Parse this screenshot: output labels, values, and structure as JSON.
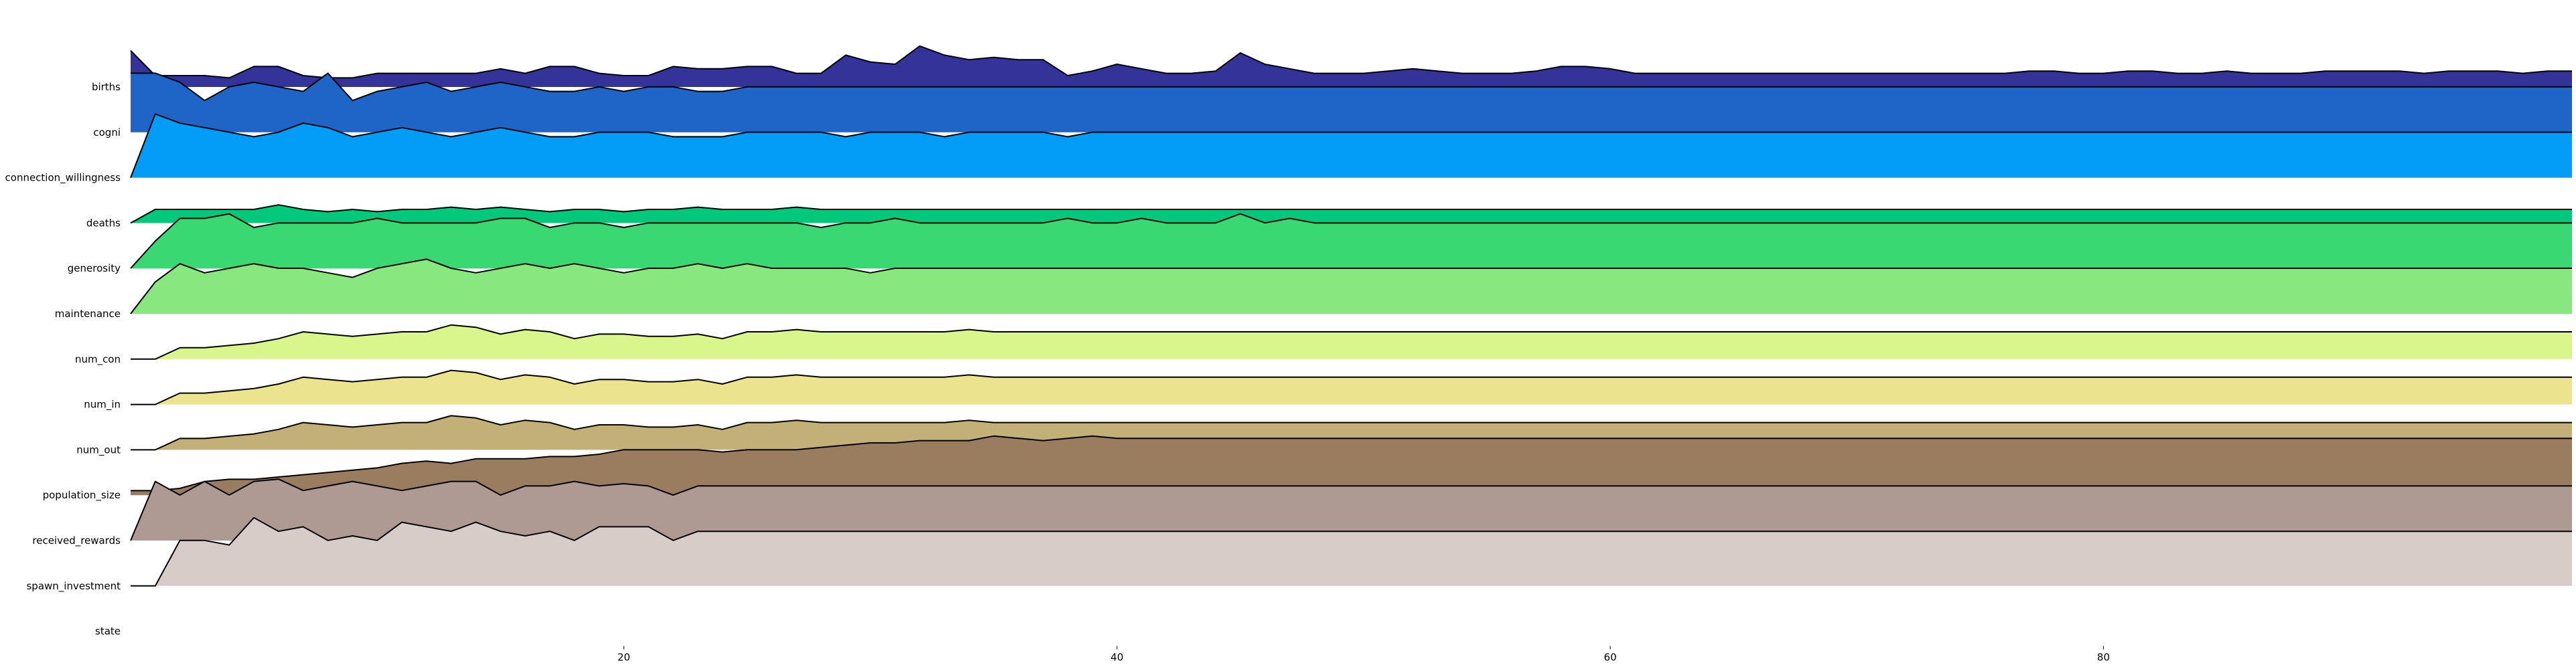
{
  "chart_data": {
    "type": "area",
    "title": "",
    "xlabel": "",
    "ylabel": "",
    "xlim": [
      0,
      99
    ],
    "x_ticks": [
      20,
      40,
      60,
      80
    ],
    "grid": false,
    "legend": "none",
    "series": [
      {
        "name": "births",
        "color": "#343399",
        "values": [
          0.8,
          0.25,
          0.25,
          0.25,
          0.2,
          0.45,
          0.45,
          0.25,
          0.2,
          0.2,
          0.3,
          0.3,
          0.3,
          0.3,
          0.3,
          0.4,
          0.3,
          0.45,
          0.45,
          0.3,
          0.25,
          0.25,
          0.45,
          0.4,
          0.4,
          0.45,
          0.45,
          0.3,
          0.3,
          0.7,
          0.55,
          0.5,
          0.9,
          0.7,
          0.6,
          0.65,
          0.6,
          0.6,
          0.25,
          0.35,
          0.5,
          0.4,
          0.3,
          0.3,
          0.35,
          0.75,
          0.5,
          0.4,
          0.3,
          0.3,
          0.3,
          0.35,
          0.4,
          0.35,
          0.3,
          0.3,
          0.3,
          0.35,
          0.45,
          0.45,
          0.4,
          0.3,
          0.3,
          0.3,
          0.3,
          0.3,
          0.3,
          0.3,
          0.3,
          0.3,
          0.3,
          0.3,
          0.3,
          0.3,
          0.3,
          0.3,
          0.3,
          0.35,
          0.35,
          0.3,
          0.3,
          0.35,
          0.35,
          0.3,
          0.3,
          0.35,
          0.3,
          0.3,
          0.3,
          0.35,
          0.35,
          0.35,
          0.35,
          0.3,
          0.35,
          0.35,
          0.35,
          0.3,
          0.35,
          0.35
        ]
      },
      {
        "name": "cogni",
        "color": "#1f65c8",
        "values": [
          1.3,
          1.3,
          1.1,
          0.7,
          1.0,
          1.1,
          1.0,
          0.9,
          1.3,
          0.7,
          0.9,
          1.0,
          1.1,
          0.9,
          1.0,
          1.1,
          1.0,
          0.9,
          0.9,
          1.0,
          0.9,
          1.0,
          1.0,
          0.9,
          0.9,
          1.0,
          1.0,
          1.0,
          1.0,
          1.0,
          1.0,
          1.0,
          1.0,
          1.0,
          1.0,
          1.0,
          1.0,
          1.0,
          1.0,
          1.0,
          1.0,
          1.0,
          1.0,
          1.0,
          1.0,
          1.0,
          1.0,
          1.0,
          1.0,
          1.0,
          1.0,
          1.0,
          1.0,
          1.0,
          1.0,
          1.0,
          1.0,
          1.0,
          1.0,
          1.0,
          1.0,
          1.0,
          1.0,
          1.0,
          1.0,
          1.0,
          1.0,
          1.0,
          1.0,
          1.0,
          1.0,
          1.0,
          1.0,
          1.0,
          1.0,
          1.0,
          1.0,
          1.0,
          1.0,
          1.0,
          1.0,
          1.0,
          1.0,
          1.0,
          1.0,
          1.0,
          1.0,
          1.0,
          1.0,
          1.0,
          1.0,
          1.0,
          1.0,
          1.0,
          1.0,
          1.0,
          1.0,
          1.0,
          1.0,
          1.0
        ]
      },
      {
        "name": "connection_willingness",
        "color": "#039df7",
        "values": [
          0.0,
          1.4,
          1.2,
          1.1,
          1.0,
          0.9,
          1.0,
          1.2,
          1.1,
          0.9,
          1.0,
          1.1,
          1.0,
          0.9,
          1.0,
          1.1,
          1.0,
          0.9,
          0.9,
          1.0,
          1.0,
          1.0,
          0.9,
          0.9,
          0.9,
          1.0,
          1.0,
          1.0,
          1.0,
          0.9,
          1.0,
          1.0,
          1.0,
          0.9,
          1.0,
          1.0,
          1.0,
          1.0,
          0.9,
          1.0,
          1.0,
          1.0,
          1.0,
          1.0,
          1.0,
          1.0,
          1.0,
          1.0,
          1.0,
          1.0,
          1.0,
          1.0,
          1.0,
          1.0,
          1.0,
          1.0,
          1.0,
          1.0,
          1.0,
          1.0,
          1.0,
          1.0,
          1.0,
          1.0,
          1.0,
          1.0,
          1.0,
          1.0,
          1.0,
          1.0,
          1.0,
          1.0,
          1.0,
          1.0,
          1.0,
          1.0,
          1.0,
          1.0,
          1.0,
          1.0,
          1.0,
          1.0,
          1.0,
          1.0,
          1.0,
          1.0,
          1.0,
          1.0,
          1.0,
          1.0,
          1.0,
          1.0,
          1.0,
          1.0,
          1.0,
          1.0,
          1.0,
          1.0,
          1.0,
          1.0
        ]
      },
      {
        "name": "deaths",
        "color": "#02c87c",
        "values": [
          0.0,
          0.3,
          0.3,
          0.3,
          0.3,
          0.3,
          0.4,
          0.3,
          0.25,
          0.3,
          0.25,
          0.3,
          0.3,
          0.35,
          0.3,
          0.35,
          0.3,
          0.25,
          0.3,
          0.3,
          0.25,
          0.3,
          0.3,
          0.35,
          0.3,
          0.3,
          0.3,
          0.35,
          0.3,
          0.3,
          0.3,
          0.3,
          0.3,
          0.3,
          0.3,
          0.3,
          0.3,
          0.3,
          0.3,
          0.3,
          0.3,
          0.3,
          0.3,
          0.3,
          0.3,
          0.3,
          0.3,
          0.3,
          0.3,
          0.3,
          0.3,
          0.3,
          0.3,
          0.3,
          0.3,
          0.3,
          0.3,
          0.3,
          0.3,
          0.3,
          0.3,
          0.3,
          0.3,
          0.3,
          0.3,
          0.3,
          0.3,
          0.3,
          0.3,
          0.3,
          0.3,
          0.3,
          0.3,
          0.3,
          0.3,
          0.3,
          0.3,
          0.3,
          0.3,
          0.3,
          0.3,
          0.3,
          0.3,
          0.3,
          0.3,
          0.3,
          0.3,
          0.3,
          0.3,
          0.3,
          0.3,
          0.3,
          0.3,
          0.3,
          0.3,
          0.3,
          0.3,
          0.3,
          0.3,
          0.3
        ]
      },
      {
        "name": "generosity",
        "color": "#3ad872",
        "values": [
          0.0,
          0.6,
          1.1,
          1.1,
          1.2,
          0.9,
          1.0,
          1.0,
          1.0,
          1.0,
          1.1,
          1.0,
          1.0,
          1.0,
          1.0,
          1.1,
          1.1,
          0.9,
          1.0,
          1.0,
          0.9,
          1.0,
          1.0,
          1.0,
          1.0,
          1.0,
          1.0,
          1.0,
          0.9,
          1.0,
          1.0,
          1.1,
          1.0,
          1.0,
          1.0,
          1.0,
          1.0,
          1.0,
          1.1,
          1.0,
          1.0,
          1.1,
          1.0,
          1.0,
          1.0,
          1.2,
          1.0,
          1.1,
          1.0,
          1.0,
          1.0,
          1.0,
          1.0,
          1.0,
          1.0,
          1.0,
          1.0,
          1.0,
          1.0,
          1.0,
          1.0,
          1.0,
          1.0,
          1.0,
          1.0,
          1.0,
          1.0,
          1.0,
          1.0,
          1.0,
          1.0,
          1.0,
          1.0,
          1.0,
          1.0,
          1.0,
          1.0,
          1.0,
          1.0,
          1.0,
          1.0,
          1.0,
          1.0,
          1.0,
          1.0,
          1.0,
          1.0,
          1.0,
          1.0,
          1.0,
          1.0,
          1.0,
          1.0,
          1.0,
          1.0,
          1.0,
          1.0,
          1.0,
          1.0,
          1.0
        ]
      },
      {
        "name": "maintenance",
        "color": "#88e77f",
        "values": [
          0.0,
          0.7,
          1.1,
          0.9,
          1.0,
          1.1,
          1.0,
          1.0,
          0.9,
          0.8,
          1.0,
          1.1,
          1.2,
          1.0,
          0.9,
          1.0,
          1.1,
          1.0,
          1.1,
          1.0,
          0.9,
          1.0,
          1.0,
          1.1,
          1.0,
          1.1,
          1.0,
          1.0,
          1.0,
          1.0,
          0.9,
          1.0,
          1.0,
          1.0,
          1.0,
          1.0,
          1.0,
          1.0,
          1.0,
          1.0,
          1.0,
          1.0,
          1.0,
          1.0,
          1.0,
          1.0,
          1.0,
          1.0,
          1.0,
          1.0,
          1.0,
          1.0,
          1.0,
          1.0,
          1.0,
          1.0,
          1.0,
          1.0,
          1.0,
          1.0,
          1.0,
          1.0,
          1.0,
          1.0,
          1.0,
          1.0,
          1.0,
          1.0,
          1.0,
          1.0,
          1.0,
          1.0,
          1.0,
          1.0,
          1.0,
          1.0,
          1.0,
          1.0,
          1.0,
          1.0,
          1.0,
          1.0,
          1.0,
          1.0,
          1.0,
          1.0,
          1.0,
          1.0,
          1.0,
          1.0,
          1.0,
          1.0,
          1.0,
          1.0,
          1.0,
          1.0,
          1.0,
          1.0,
          1.0,
          1.0
        ]
      },
      {
        "name": "num_con",
        "color": "#d8f68b",
        "values": [
          0.0,
          0.0,
          0.25,
          0.25,
          0.3,
          0.35,
          0.45,
          0.6,
          0.55,
          0.5,
          0.55,
          0.6,
          0.6,
          0.75,
          0.7,
          0.55,
          0.65,
          0.6,
          0.45,
          0.55,
          0.55,
          0.5,
          0.5,
          0.55,
          0.45,
          0.6,
          0.6,
          0.65,
          0.6,
          0.6,
          0.6,
          0.6,
          0.6,
          0.6,
          0.65,
          0.6,
          0.6,
          0.6,
          0.6,
          0.6,
          0.6,
          0.6,
          0.6,
          0.6,
          0.6,
          0.6,
          0.6,
          0.6,
          0.6,
          0.6,
          0.6,
          0.6,
          0.6,
          0.6,
          0.6,
          0.6,
          0.6,
          0.6,
          0.6,
          0.6,
          0.6,
          0.6,
          0.6,
          0.6,
          0.6,
          0.6,
          0.6,
          0.6,
          0.6,
          0.6,
          0.6,
          0.6,
          0.6,
          0.6,
          0.6,
          0.6,
          0.6,
          0.6,
          0.6,
          0.6,
          0.6,
          0.6,
          0.6,
          0.6,
          0.6,
          0.6,
          0.6,
          0.6,
          0.6,
          0.6,
          0.6,
          0.6,
          0.6,
          0.6,
          0.6,
          0.6,
          0.6,
          0.6,
          0.6,
          0.6
        ]
      },
      {
        "name": "num_in",
        "color": "#ebe38d",
        "values": [
          0.0,
          0.0,
          0.25,
          0.25,
          0.3,
          0.35,
          0.45,
          0.6,
          0.55,
          0.5,
          0.55,
          0.6,
          0.6,
          0.75,
          0.7,
          0.55,
          0.65,
          0.6,
          0.45,
          0.55,
          0.55,
          0.5,
          0.5,
          0.55,
          0.45,
          0.6,
          0.6,
          0.65,
          0.6,
          0.6,
          0.6,
          0.6,
          0.6,
          0.6,
          0.65,
          0.6,
          0.6,
          0.6,
          0.6,
          0.6,
          0.6,
          0.6,
          0.6,
          0.6,
          0.6,
          0.6,
          0.6,
          0.6,
          0.6,
          0.6,
          0.6,
          0.6,
          0.6,
          0.6,
          0.6,
          0.6,
          0.6,
          0.6,
          0.6,
          0.6,
          0.6,
          0.6,
          0.6,
          0.6,
          0.6,
          0.6,
          0.6,
          0.6,
          0.6,
          0.6,
          0.6,
          0.6,
          0.6,
          0.6,
          0.6,
          0.6,
          0.6,
          0.6,
          0.6,
          0.6,
          0.6,
          0.6,
          0.6,
          0.6,
          0.6,
          0.6,
          0.6,
          0.6,
          0.6,
          0.6,
          0.6,
          0.6,
          0.6,
          0.6,
          0.6,
          0.6,
          0.6,
          0.6,
          0.6,
          0.6
        ]
      },
      {
        "name": "num_out",
        "color": "#c3b077",
        "values": [
          0.0,
          0.0,
          0.25,
          0.25,
          0.3,
          0.35,
          0.45,
          0.6,
          0.55,
          0.5,
          0.55,
          0.6,
          0.6,
          0.75,
          0.7,
          0.55,
          0.65,
          0.6,
          0.45,
          0.55,
          0.55,
          0.5,
          0.5,
          0.55,
          0.45,
          0.6,
          0.6,
          0.65,
          0.6,
          0.6,
          0.6,
          0.6,
          0.6,
          0.6,
          0.65,
          0.6,
          0.6,
          0.6,
          0.6,
          0.6,
          0.6,
          0.6,
          0.6,
          0.6,
          0.6,
          0.6,
          0.6,
          0.6,
          0.6,
          0.6,
          0.6,
          0.6,
          0.6,
          0.6,
          0.6,
          0.6,
          0.6,
          0.6,
          0.6,
          0.6,
          0.6,
          0.6,
          0.6,
          0.6,
          0.6,
          0.6,
          0.6,
          0.6,
          0.6,
          0.6,
          0.6,
          0.6,
          0.6,
          0.6,
          0.6,
          0.6,
          0.6,
          0.6,
          0.6,
          0.6,
          0.6,
          0.6,
          0.6,
          0.6,
          0.6,
          0.6,
          0.6,
          0.6,
          0.6,
          0.6,
          0.6,
          0.6,
          0.6,
          0.6,
          0.6,
          0.6,
          0.6,
          0.6,
          0.6,
          0.6
        ]
      },
      {
        "name": "population_size",
        "color": "#9a7c5f",
        "values": [
          0.1,
          0.1,
          0.15,
          0.3,
          0.35,
          0.35,
          0.4,
          0.45,
          0.5,
          0.55,
          0.6,
          0.7,
          0.75,
          0.7,
          0.8,
          0.8,
          0.8,
          0.85,
          0.85,
          0.9,
          1.0,
          1.0,
          1.0,
          1.0,
          0.95,
          1.0,
          1.0,
          1.0,
          1.05,
          1.1,
          1.15,
          1.15,
          1.2,
          1.2,
          1.2,
          1.3,
          1.25,
          1.2,
          1.25,
          1.3,
          1.25,
          1.25,
          1.25,
          1.25,
          1.25,
          1.25,
          1.25,
          1.25,
          1.25,
          1.25,
          1.25,
          1.25,
          1.25,
          1.25,
          1.25,
          1.25,
          1.25,
          1.25,
          1.25,
          1.25,
          1.25,
          1.25,
          1.25,
          1.25,
          1.25,
          1.25,
          1.25,
          1.25,
          1.25,
          1.25,
          1.25,
          1.25,
          1.25,
          1.25,
          1.25,
          1.25,
          1.25,
          1.25,
          1.25,
          1.25,
          1.25,
          1.25,
          1.25,
          1.25,
          1.25,
          1.25,
          1.25,
          1.25,
          1.25,
          1.25,
          1.25,
          1.25,
          1.25,
          1.25,
          1.25,
          1.25,
          1.25,
          1.25,
          1.25,
          1.25
        ]
      },
      {
        "name": "received_rewards",
        "color": "#ae9a93",
        "values": [
          0.0,
          1.3,
          1.0,
          1.3,
          1.0,
          1.3,
          1.35,
          1.1,
          1.2,
          1.3,
          1.2,
          1.1,
          1.2,
          1.3,
          1.3,
          1.0,
          1.2,
          1.2,
          1.3,
          1.2,
          1.25,
          1.2,
          1.0,
          1.2,
          1.2,
          1.2,
          1.2,
          1.2,
          1.2,
          1.2,
          1.2,
          1.2,
          1.2,
          1.2,
          1.2,
          1.2,
          1.2,
          1.2,
          1.2,
          1.2,
          1.2,
          1.2,
          1.2,
          1.2,
          1.2,
          1.2,
          1.2,
          1.2,
          1.2,
          1.2,
          1.2,
          1.2,
          1.2,
          1.2,
          1.2,
          1.2,
          1.2,
          1.2,
          1.2,
          1.2,
          1.2,
          1.2,
          1.2,
          1.2,
          1.2,
          1.2,
          1.2,
          1.2,
          1.2,
          1.2,
          1.2,
          1.2,
          1.2,
          1.2,
          1.2,
          1.2,
          1.2,
          1.2,
          1.2,
          1.2,
          1.2,
          1.2,
          1.2,
          1.2,
          1.2,
          1.2,
          1.2,
          1.2,
          1.2,
          1.2,
          1.2,
          1.2,
          1.2,
          1.2,
          1.2,
          1.2,
          1.2,
          1.2,
          1.2,
          1.2
        ]
      },
      {
        "name": "spawn_investment",
        "color": "#d8ccc9",
        "values": [
          0.0,
          0.0,
          1.0,
          1.0,
          0.9,
          1.5,
          1.2,
          1.3,
          1.0,
          1.1,
          1.0,
          1.4,
          1.3,
          1.2,
          1.4,
          1.2,
          1.1,
          1.2,
          1.0,
          1.3,
          1.3,
          1.3,
          1.0,
          1.2,
          1.2,
          1.2,
          1.2,
          1.2,
          1.2,
          1.2,
          1.2,
          1.2,
          1.2,
          1.2,
          1.2,
          1.2,
          1.2,
          1.2,
          1.2,
          1.2,
          1.2,
          1.2,
          1.2,
          1.2,
          1.2,
          1.2,
          1.2,
          1.2,
          1.2,
          1.2,
          1.2,
          1.2,
          1.2,
          1.2,
          1.2,
          1.2,
          1.2,
          1.2,
          1.2,
          1.2,
          1.2,
          1.2,
          1.2,
          1.2,
          1.2,
          1.2,
          1.2,
          1.2,
          1.2,
          1.2,
          1.2,
          1.2,
          1.2,
          1.2,
          1.2,
          1.2,
          1.2,
          1.2,
          1.2,
          1.2,
          1.2,
          1.2,
          1.2,
          1.2,
          1.2,
          1.2,
          1.2,
          1.2,
          1.2,
          1.2,
          1.2,
          1.2,
          1.2,
          1.2,
          1.2,
          1.2,
          1.2,
          1.2,
          1.2,
          1.2
        ]
      },
      {
        "name": "state",
        "color": "#ffffff",
        "values": []
      }
    ]
  }
}
